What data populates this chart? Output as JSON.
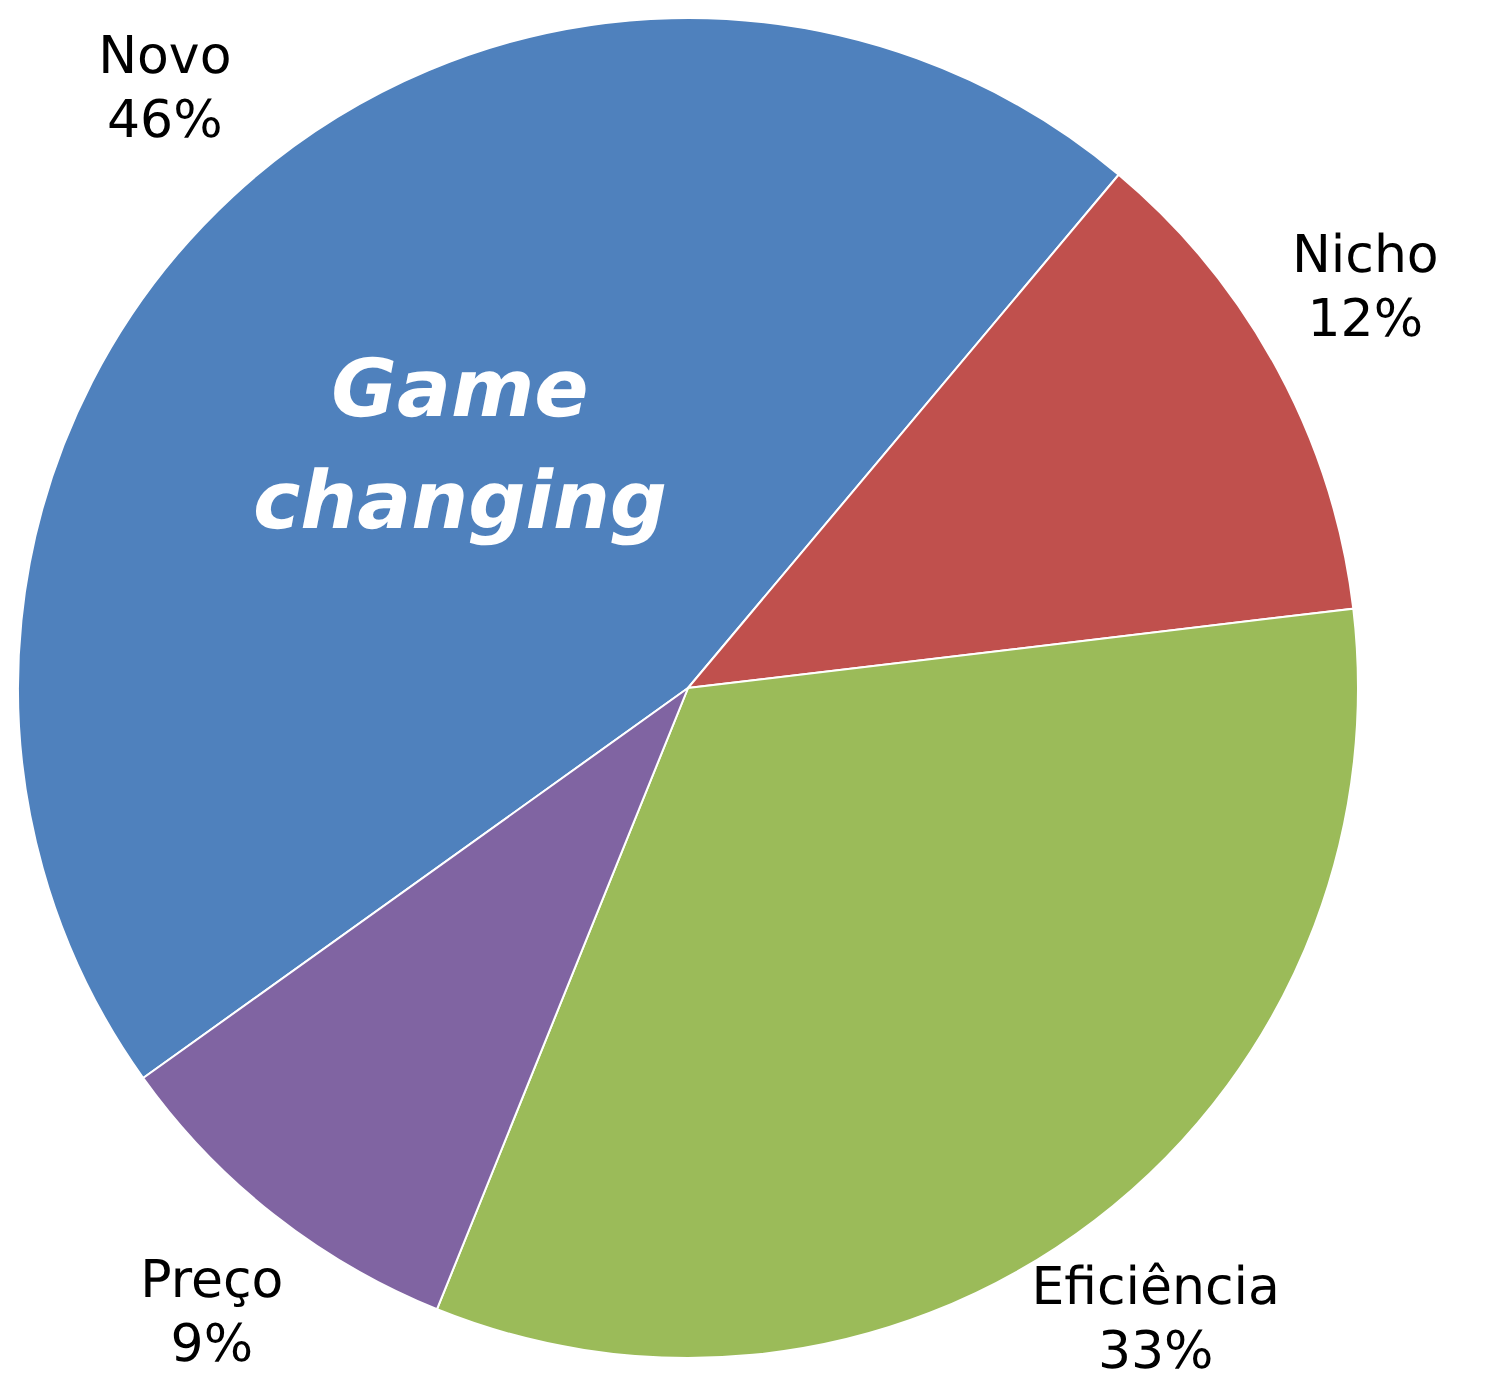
{
  "chart_data": {
    "type": "pie",
    "categories": [
      "Novo",
      "Nicho",
      "Eficiência",
      "Preço"
    ],
    "values": [
      46,
      12,
      33,
      9
    ],
    "colors": [
      "#4f81bd",
      "#c0504d",
      "#9bbb59",
      "#8064a2"
    ],
    "value_labels": [
      "46%",
      "12%",
      "33%",
      "9%"
    ],
    "annotations": [
      "Game changing"
    ]
  }
}
